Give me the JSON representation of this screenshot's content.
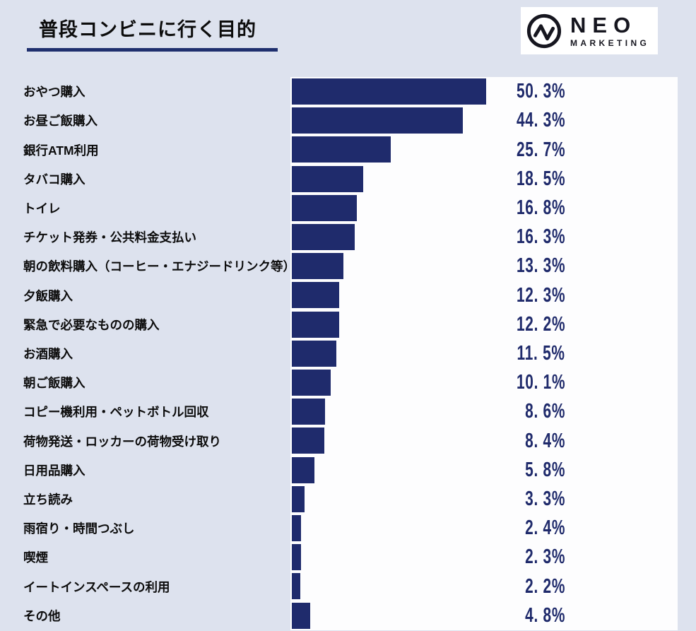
{
  "page": {
    "background_color": "#dde2ee"
  },
  "header": {
    "title": "普段コンビニに行く目的",
    "underline_color": "#1f2f6e"
  },
  "logo": {
    "name": "NEO",
    "subname": "MARKETING",
    "icon": "pulse-circle-icon",
    "background_color": "#ffffff",
    "text_color": "#16161f"
  },
  "chart_data": {
    "type": "bar",
    "orientation": "horizontal",
    "title": "普段コンビニに行く目的",
    "xlabel": "",
    "ylabel": "",
    "unit": "%",
    "xlim": [
      0,
      100
    ],
    "grid": false,
    "legend": false,
    "bar_color": "#1f2b6c",
    "value_text_color": "#1f2a6b",
    "plot_background": "#fdfdfe",
    "categories": [
      "おやつ購入",
      "お昼ご飯購入",
      "銀行ATM利用",
      "タバコ購入",
      "トイレ",
      "チケット発券・公共料金支払い",
      "朝の飲料購入（コーヒー・エナジードリンク等）",
      "夕飯購入",
      "緊急で必要なものの購入",
      "お酒購入",
      "朝ご飯購入",
      "コピー機利用・ペットボトル回収",
      "荷物発送・ロッカーの荷物受け取り",
      "日用品購入",
      "立ち読み",
      "雨宿り・時間つぶし",
      "喫煙",
      "イートインスペースの利用",
      "その他"
    ],
    "values": [
      50.3,
      44.3,
      25.7,
      18.5,
      16.8,
      16.3,
      13.3,
      12.3,
      12.2,
      11.5,
      10.1,
      8.6,
      8.4,
      5.8,
      3.3,
      2.4,
      2.3,
      2.2,
      4.8
    ],
    "value_labels": [
      "50. 3%",
      "44. 3%",
      "25. 7%",
      "18. 5%",
      "16. 8%",
      "16. 3%",
      "13. 3%",
      "12. 3%",
      "12. 2%",
      "11. 5%",
      "10. 1%",
      "8. 6%",
      "8. 4%",
      "5. 8%",
      "3. 3%",
      "2. 4%",
      "2. 3%",
      "2. 2%",
      "4. 8%"
    ]
  }
}
